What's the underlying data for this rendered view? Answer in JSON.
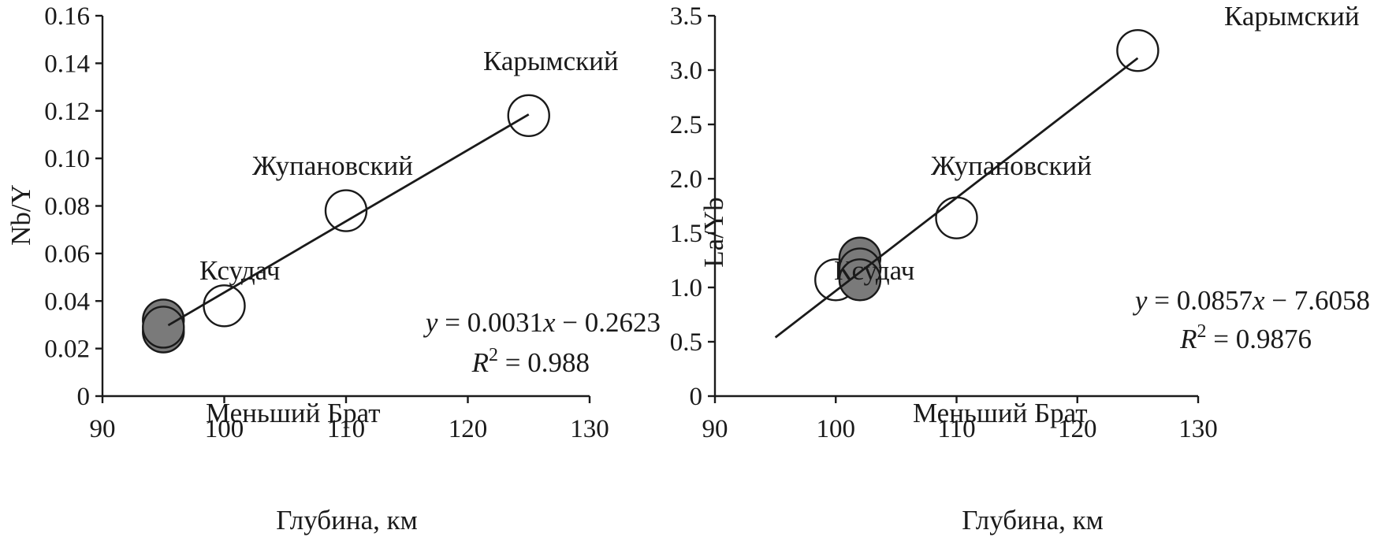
{
  "chart_data": [
    {
      "type": "scatter",
      "xlabel": "Глубина, км",
      "ylabel": "Nb/Y",
      "xlim": [
        90,
        130
      ],
      "ylim": [
        0,
        0.16
      ],
      "xticks": [
        "90",
        "100",
        "110",
        "120",
        "130"
      ],
      "yticks": [
        "0",
        "0.02",
        "0.04",
        "0.06",
        "0.08",
        "0.10",
        "0.12",
        "0.14",
        "0.16"
      ],
      "points": [
        {
          "x": 95,
          "y": 0.032,
          "filled": true
        },
        {
          "x": 95,
          "y": 0.027,
          "filled": true
        },
        {
          "x": 95,
          "y": 0.029,
          "filled": true
        },
        {
          "x": 100,
          "y": 0.038,
          "filled": false
        },
        {
          "x": 110,
          "y": 0.078,
          "filled": false
        },
        {
          "x": 125,
          "y": 0.118,
          "filled": false
        }
      ],
      "fit": {
        "x": [
          95.4,
          125
        ],
        "y": [
          0.0298,
          0.1185
        ]
      },
      "annotations": [
        "Карымский",
        "Жупановский",
        "Ксудач",
        "Меньший Брат"
      ],
      "equation": {
        "y_var": "y",
        "rhs_pre": " = 0.0031",
        "x_var": "x",
        "rhs_post": " − 0.2623",
        "r_var": "R",
        "r_sup": "2",
        "r_rhs": " = 0.988"
      },
      "grid": false
    },
    {
      "type": "scatter",
      "xlabel": "Глубина, км",
      "ylabel": "La/Yb",
      "xlim": [
        90,
        130
      ],
      "ylim": [
        0,
        3.5
      ],
      "xticks": [
        "90",
        "100",
        "110",
        "120",
        "130"
      ],
      "yticks": [
        "0",
        "0.5",
        "1.0",
        "1.5",
        "2.0",
        "2.5",
        "3.0",
        "3.5"
      ],
      "points": [
        {
          "x": 100,
          "y": 1.07,
          "filled": false
        },
        {
          "x": 102,
          "y": 1.27,
          "filled": true
        },
        {
          "x": 102,
          "y": 1.17,
          "filled": true
        },
        {
          "x": 102,
          "y": 1.07,
          "filled": true
        },
        {
          "x": 110,
          "y": 1.64,
          "filled": false
        },
        {
          "x": 125,
          "y": 3.18,
          "filled": false
        }
      ],
      "fit": {
        "x": [
          95,
          125
        ],
        "y": [
          0.54,
          3.11
        ]
      },
      "annotations": [
        "Карымский",
        "Жупановский",
        "Ксудач",
        "Меньший Брат"
      ],
      "equation": {
        "y_var": "y",
        "rhs_pre": " = 0.0857",
        "x_var": "x",
        "rhs_post": " − 7.6058",
        "r_var": "R",
        "r_sup": "2",
        "r_rhs": " = 0.9876"
      },
      "grid": false
    }
  ]
}
